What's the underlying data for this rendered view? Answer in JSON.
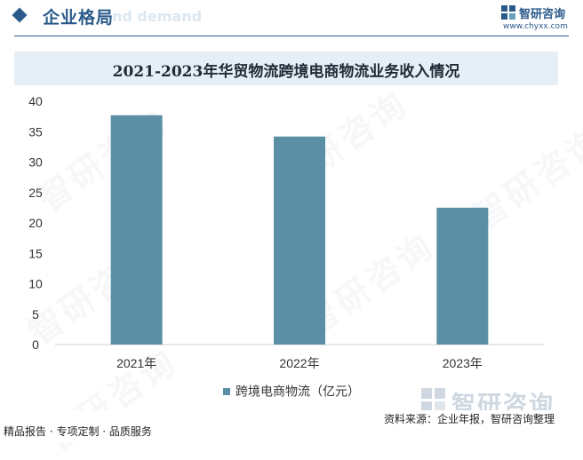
{
  "header": {
    "section_title": "企业格局",
    "ghost_text": "nd demand",
    "brand_name": "智研咨询",
    "brand_url": "www.chyxx.com"
  },
  "chart_data": {
    "type": "bar",
    "title": "2021-2023年华贸物流跨境电商物流业务收入情况",
    "categories": [
      "2021年",
      "2022年",
      "2023年"
    ],
    "series": [
      {
        "name": "跨境电商物流（亿元）",
        "values": [
          37.7,
          34.2,
          22.5
        ]
      }
    ],
    "ylim": [
      0,
      40
    ],
    "yticks": [
      "0",
      "5",
      "10",
      "15",
      "20",
      "25",
      "30",
      "35",
      "40"
    ],
    "xlabel": "",
    "ylabel": "",
    "grid": false,
    "legend": "bottom-center",
    "bar_color": "#5b8fa6"
  },
  "watermark": {
    "text": "智研咨询"
  },
  "footer": {
    "logo_text": "智研咨询",
    "left": "精品报告 · 专项定制 · 品质服务",
    "right": "资料来源：企业年报，智研咨询整理"
  }
}
